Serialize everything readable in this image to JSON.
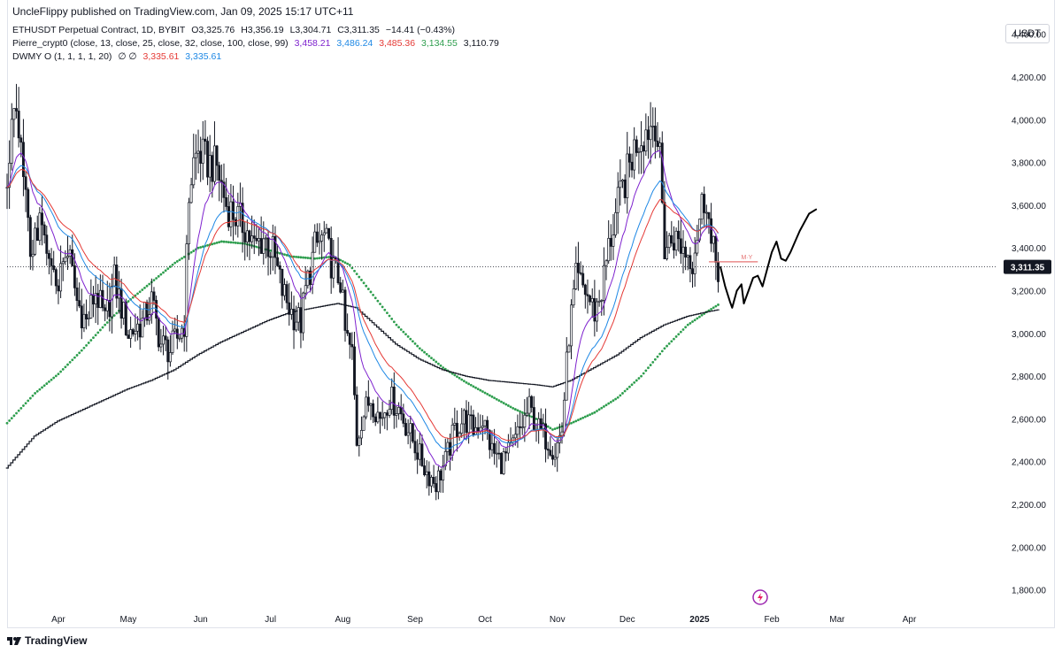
{
  "header": {
    "publisher": "UncleFlippy published on TradingView.com, Jan 09, 2025 15:17 UTC+11",
    "symbol_line": {
      "name": "ETHUSDT Perpetual Contract, 1D, BYBIT",
      "open": "O3,325.76",
      "high": "H3,356.19",
      "low": "L3,304.71",
      "close": "C3,311.35",
      "change": "−14.41 (−0.43%)"
    },
    "indicator1": {
      "name": "Pierre_crypt0 (close, 13, close, 25, close, 32, close, 100, close, 99)",
      "values": [
        "3,458.21",
        "3,486.24",
        "3,485.36",
        "3,134.55",
        "3,110.79"
      ],
      "colors": [
        "#7e22ce",
        "#1e88e5",
        "#e53935",
        "#2e9e4e",
        "#131722"
      ]
    },
    "indicator2": {
      "name": "DWMY O (1, 1, 1, 1, 20)",
      "symbols": "∅ ∅",
      "values": [
        "3,335.61",
        "3,335.61"
      ],
      "colors": [
        "#e53935",
        "#1e88e5"
      ]
    },
    "currency": "USDT"
  },
  "price_label": "3,311.35",
  "footer": {
    "brand": "TradingView"
  },
  "colors": {
    "ma13": "#7e22ce",
    "ma25": "#1e88e5",
    "ma32": "#e53935",
    "ma100": "#2e9e4e",
    "ma99": "#131722",
    "candle": "#131722",
    "axis_text": "#131722",
    "drawing": "#000000",
    "level": "#e57373"
  },
  "chart_data": {
    "type": "candlestick",
    "symbol": "ETHUSDT",
    "interval": "1D",
    "y_ticks": [
      "1,800.00",
      "2,000.00",
      "2,200.00",
      "2,400.00",
      "2,600.00",
      "2,800.00",
      "3,000.00",
      "3,200.00",
      "3,400.00",
      "3,600.00",
      "3,800.00",
      "4,000.00",
      "4,200.00",
      "4,400.00"
    ],
    "y_tick_values": [
      1800,
      2000,
      2200,
      2400,
      2600,
      2800,
      3000,
      3200,
      3400,
      3600,
      3800,
      4000,
      4200,
      4400
    ],
    "ylim": [
      1720,
      4560
    ],
    "x_ticks": [
      "Apr",
      "May",
      "Jun",
      "Jul",
      "Aug",
      "Sep",
      "Oct",
      "Nov",
      "Dec",
      "2025",
      "Feb",
      "Mar",
      "Apr"
    ],
    "x_tick_days": [
      0,
      30,
      61,
      91,
      122,
      153,
      183,
      214,
      244,
      275,
      306,
      334,
      365
    ],
    "x_day_range": [
      -22,
      402
    ],
    "last_day": 283,
    "current_price": 3311.35,
    "price_path": [
      [
        -22,
        3700
      ],
      [
        -20,
        4050
      ],
      [
        -16,
        3850
      ],
      [
        -12,
        3400
      ],
      [
        -8,
        3500
      ],
      [
        -4,
        3300
      ],
      [
        0,
        3250
      ],
      [
        4,
        3400
      ],
      [
        8,
        3150
      ],
      [
        12,
        3050
      ],
      [
        16,
        3200
      ],
      [
        20,
        3050
      ],
      [
        24,
        3250
      ],
      [
        30,
        3000
      ],
      [
        36,
        3050
      ],
      [
        40,
        3150
      ],
      [
        44,
        2950
      ],
      [
        48,
        2920
      ],
      [
        52,
        3000
      ],
      [
        54,
        3050
      ],
      [
        56,
        3650
      ],
      [
        58,
        3800
      ],
      [
        60,
        3850
      ],
      [
        64,
        3800
      ],
      [
        68,
        3780
      ],
      [
        72,
        3600
      ],
      [
        76,
        3550
      ],
      [
        80,
        3500
      ],
      [
        84,
        3400
      ],
      [
        88,
        3450
      ],
      [
        92,
        3380
      ],
      [
        96,
        3200
      ],
      [
        100,
        3100
      ],
      [
        104,
        3050
      ],
      [
        106,
        3200
      ],
      [
        110,
        3400
      ],
      [
        114,
        3450
      ],
      [
        118,
        3300
      ],
      [
        121,
        3250
      ],
      [
        123,
        3000
      ],
      [
        126,
        2900
      ],
      [
        128,
        2500
      ],
      [
        130,
        2600
      ],
      [
        134,
        2700
      ],
      [
        138,
        2600
      ],
      [
        142,
        2700
      ],
      [
        146,
        2650
      ],
      [
        150,
        2550
      ],
      [
        154,
        2450
      ],
      [
        158,
        2350
      ],
      [
        162,
        2300
      ],
      [
        166,
        2400
      ],
      [
        170,
        2550
      ],
      [
        174,
        2600
      ],
      [
        178,
        2550
      ],
      [
        182,
        2600
      ],
      [
        186,
        2450
      ],
      [
        190,
        2400
      ],
      [
        194,
        2450
      ],
      [
        198,
        2550
      ],
      [
        202,
        2650
      ],
      [
        206,
        2550
      ],
      [
        210,
        2500
      ],
      [
        213,
        2450
      ],
      [
        216,
        2550
      ],
      [
        219,
        3000
      ],
      [
        222,
        3250
      ],
      [
        226,
        3200
      ],
      [
        230,
        3100
      ],
      [
        233,
        3200
      ],
      [
        236,
        3400
      ],
      [
        240,
        3600
      ],
      [
        244,
        3750
      ],
      [
        248,
        3900
      ],
      [
        252,
        3950
      ],
      [
        256,
        4000
      ],
      [
        258,
        3800
      ],
      [
        260,
        3400
      ],
      [
        264,
        3450
      ],
      [
        268,
        3400
      ],
      [
        272,
        3350
      ],
      [
        276,
        3600
      ],
      [
        278,
        3650
      ],
      [
        280,
        3400
      ],
      [
        283,
        3311
      ]
    ],
    "series": [
      {
        "name": "13",
        "values": [
          "3,458.21"
        ]
      },
      {
        "name": "25",
        "values": [
          "3,486.24"
        ]
      },
      {
        "name": "32",
        "values": [
          "3,485.36"
        ]
      },
      {
        "name": "100",
        "values": [
          "3,134.55"
        ]
      },
      {
        "name": "99",
        "values": [
          "3,110.79"
        ]
      }
    ],
    "ma100_path": [
      [
        -22,
        2580
      ],
      [
        -10,
        2720
      ],
      [
        0,
        2810
      ],
      [
        10,
        2920
      ],
      [
        20,
        3040
      ],
      [
        30,
        3150
      ],
      [
        40,
        3240
      ],
      [
        50,
        3330
      ],
      [
        60,
        3400
      ],
      [
        70,
        3430
      ],
      [
        80,
        3420
      ],
      [
        90,
        3390
      ],
      [
        100,
        3360
      ],
      [
        110,
        3350
      ],
      [
        118,
        3360
      ],
      [
        125,
        3320
      ],
      [
        135,
        3180
      ],
      [
        145,
        3040
      ],
      [
        155,
        2930
      ],
      [
        165,
        2840
      ],
      [
        175,
        2770
      ],
      [
        185,
        2710
      ],
      [
        195,
        2650
      ],
      [
        205,
        2600
      ],
      [
        212,
        2550
      ],
      [
        220,
        2580
      ],
      [
        230,
        2630
      ],
      [
        240,
        2700
      ],
      [
        250,
        2800
      ],
      [
        260,
        2930
      ],
      [
        270,
        3040
      ],
      [
        278,
        3100
      ],
      [
        283,
        3134
      ]
    ],
    "ma99_path": [
      [
        -22,
        2370
      ],
      [
        -10,
        2520
      ],
      [
        0,
        2590
      ],
      [
        10,
        2640
      ],
      [
        20,
        2690
      ],
      [
        30,
        2740
      ],
      [
        40,
        2780
      ],
      [
        50,
        2830
      ],
      [
        60,
        2900
      ],
      [
        70,
        2960
      ],
      [
        80,
        3010
      ],
      [
        90,
        3060
      ],
      [
        100,
        3100
      ],
      [
        110,
        3120
      ],
      [
        120,
        3140
      ],
      [
        128,
        3120
      ],
      [
        135,
        3050
      ],
      [
        145,
        2950
      ],
      [
        155,
        2880
      ],
      [
        165,
        2830
      ],
      [
        175,
        2800
      ],
      [
        185,
        2780
      ],
      [
        195,
        2770
      ],
      [
        205,
        2760
      ],
      [
        212,
        2750
      ],
      [
        220,
        2780
      ],
      [
        230,
        2840
      ],
      [
        240,
        2900
      ],
      [
        250,
        2980
      ],
      [
        260,
        3040
      ],
      [
        270,
        3080
      ],
      [
        278,
        3100
      ],
      [
        283,
        3110
      ]
    ],
    "level_line": {
      "value": 3335,
      "from_day": 279,
      "to_day": 300,
      "label": "M·Y"
    },
    "projection_path": [
      [
        284,
        3310
      ],
      [
        286,
        3220
      ],
      [
        288,
        3150
      ],
      [
        289,
        3120
      ],
      [
        291,
        3200
      ],
      [
        293,
        3230
      ],
      [
        294,
        3140
      ],
      [
        296,
        3200
      ],
      [
        298,
        3260
      ],
      [
        300,
        3270
      ],
      [
        302,
        3220
      ],
      [
        304,
        3300
      ],
      [
        306,
        3380
      ],
      [
        308,
        3430
      ],
      [
        310,
        3350
      ],
      [
        312,
        3340
      ],
      [
        314,
        3380
      ],
      [
        316,
        3430
      ],
      [
        318,
        3480
      ],
      [
        322,
        3560
      ],
      [
        325,
        3580
      ]
    ]
  }
}
